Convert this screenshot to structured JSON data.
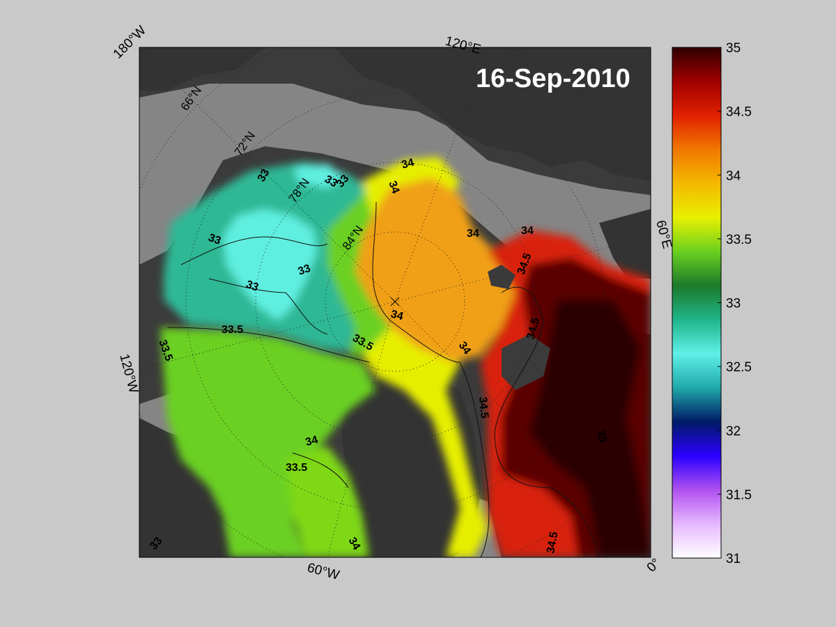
{
  "date_label": "16-Sep-2010",
  "longitude_labels": [
    "180°W",
    "120°E",
    "60°E",
    "0°",
    "60°W",
    "120°W"
  ],
  "latitude_labels": [
    "66°N",
    "72°N",
    "78°N",
    "84°N"
  ],
  "colorbar": {
    "min": 31,
    "max": 35,
    "ticks": [
      "35",
      "34.5",
      "34",
      "33.5",
      "33",
      "32.5",
      "32",
      "31.5",
      "31"
    ],
    "colors": [
      "#ffffff",
      "#e6b8ff",
      "#b050f0",
      "#2a00ff",
      "#001a66",
      "#1fa8a8",
      "#5ff0e8",
      "#1fb58a",
      "#1c7a2a",
      "#6ad020",
      "#e8f000",
      "#f4b800",
      "#f07800",
      "#e02000",
      "#a00000",
      "#300000"
    ]
  },
  "contour_labels": [
    {
      "text": "33"
    },
    {
      "text": "33"
    },
    {
      "text": "33"
    },
    {
      "text": "33"
    },
    {
      "text": "33"
    },
    {
      "text": "33"
    },
    {
      "text": "33"
    },
    {
      "text": "33.5"
    },
    {
      "text": "33.5"
    },
    {
      "text": "33.5"
    },
    {
      "text": "33.5"
    },
    {
      "text": "34"
    },
    {
      "text": "34"
    },
    {
      "text": "34"
    },
    {
      "text": "34"
    },
    {
      "text": "34"
    },
    {
      "text": "34"
    },
    {
      "text": "34"
    },
    {
      "text": "34"
    },
    {
      "text": "34.5"
    },
    {
      "text": "34.5"
    },
    {
      "text": "34.5"
    },
    {
      "text": "34.5"
    },
    {
      "text": "35"
    }
  ]
}
